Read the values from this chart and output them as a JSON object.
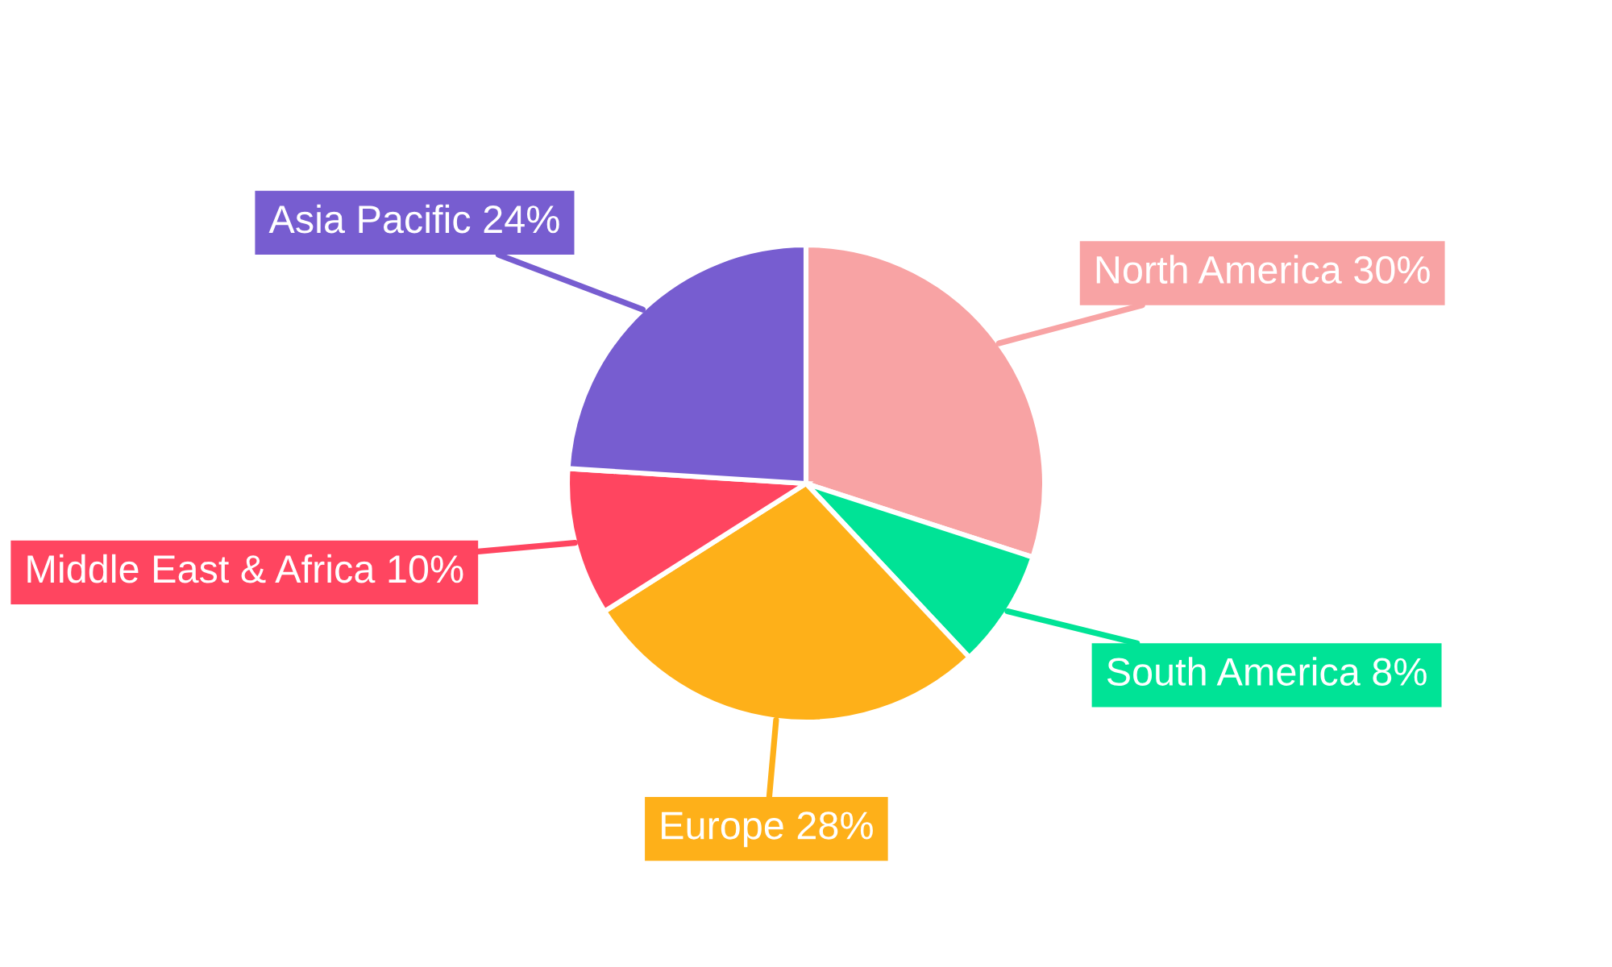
{
  "chart_data": {
    "type": "pie",
    "categories": [
      "North America",
      "South America",
      "Europe",
      "Middle East & Africa",
      "Asia Pacific"
    ],
    "values": [
      30,
      8,
      28,
      10,
      24
    ],
    "colors": [
      "#f8a3a4",
      "#00e396",
      "#feb019",
      "#ff4560",
      "#775dd0"
    ],
    "value_labels": [
      "30%",
      "8%",
      "28%",
      "10%",
      "24%"
    ]
  }
}
